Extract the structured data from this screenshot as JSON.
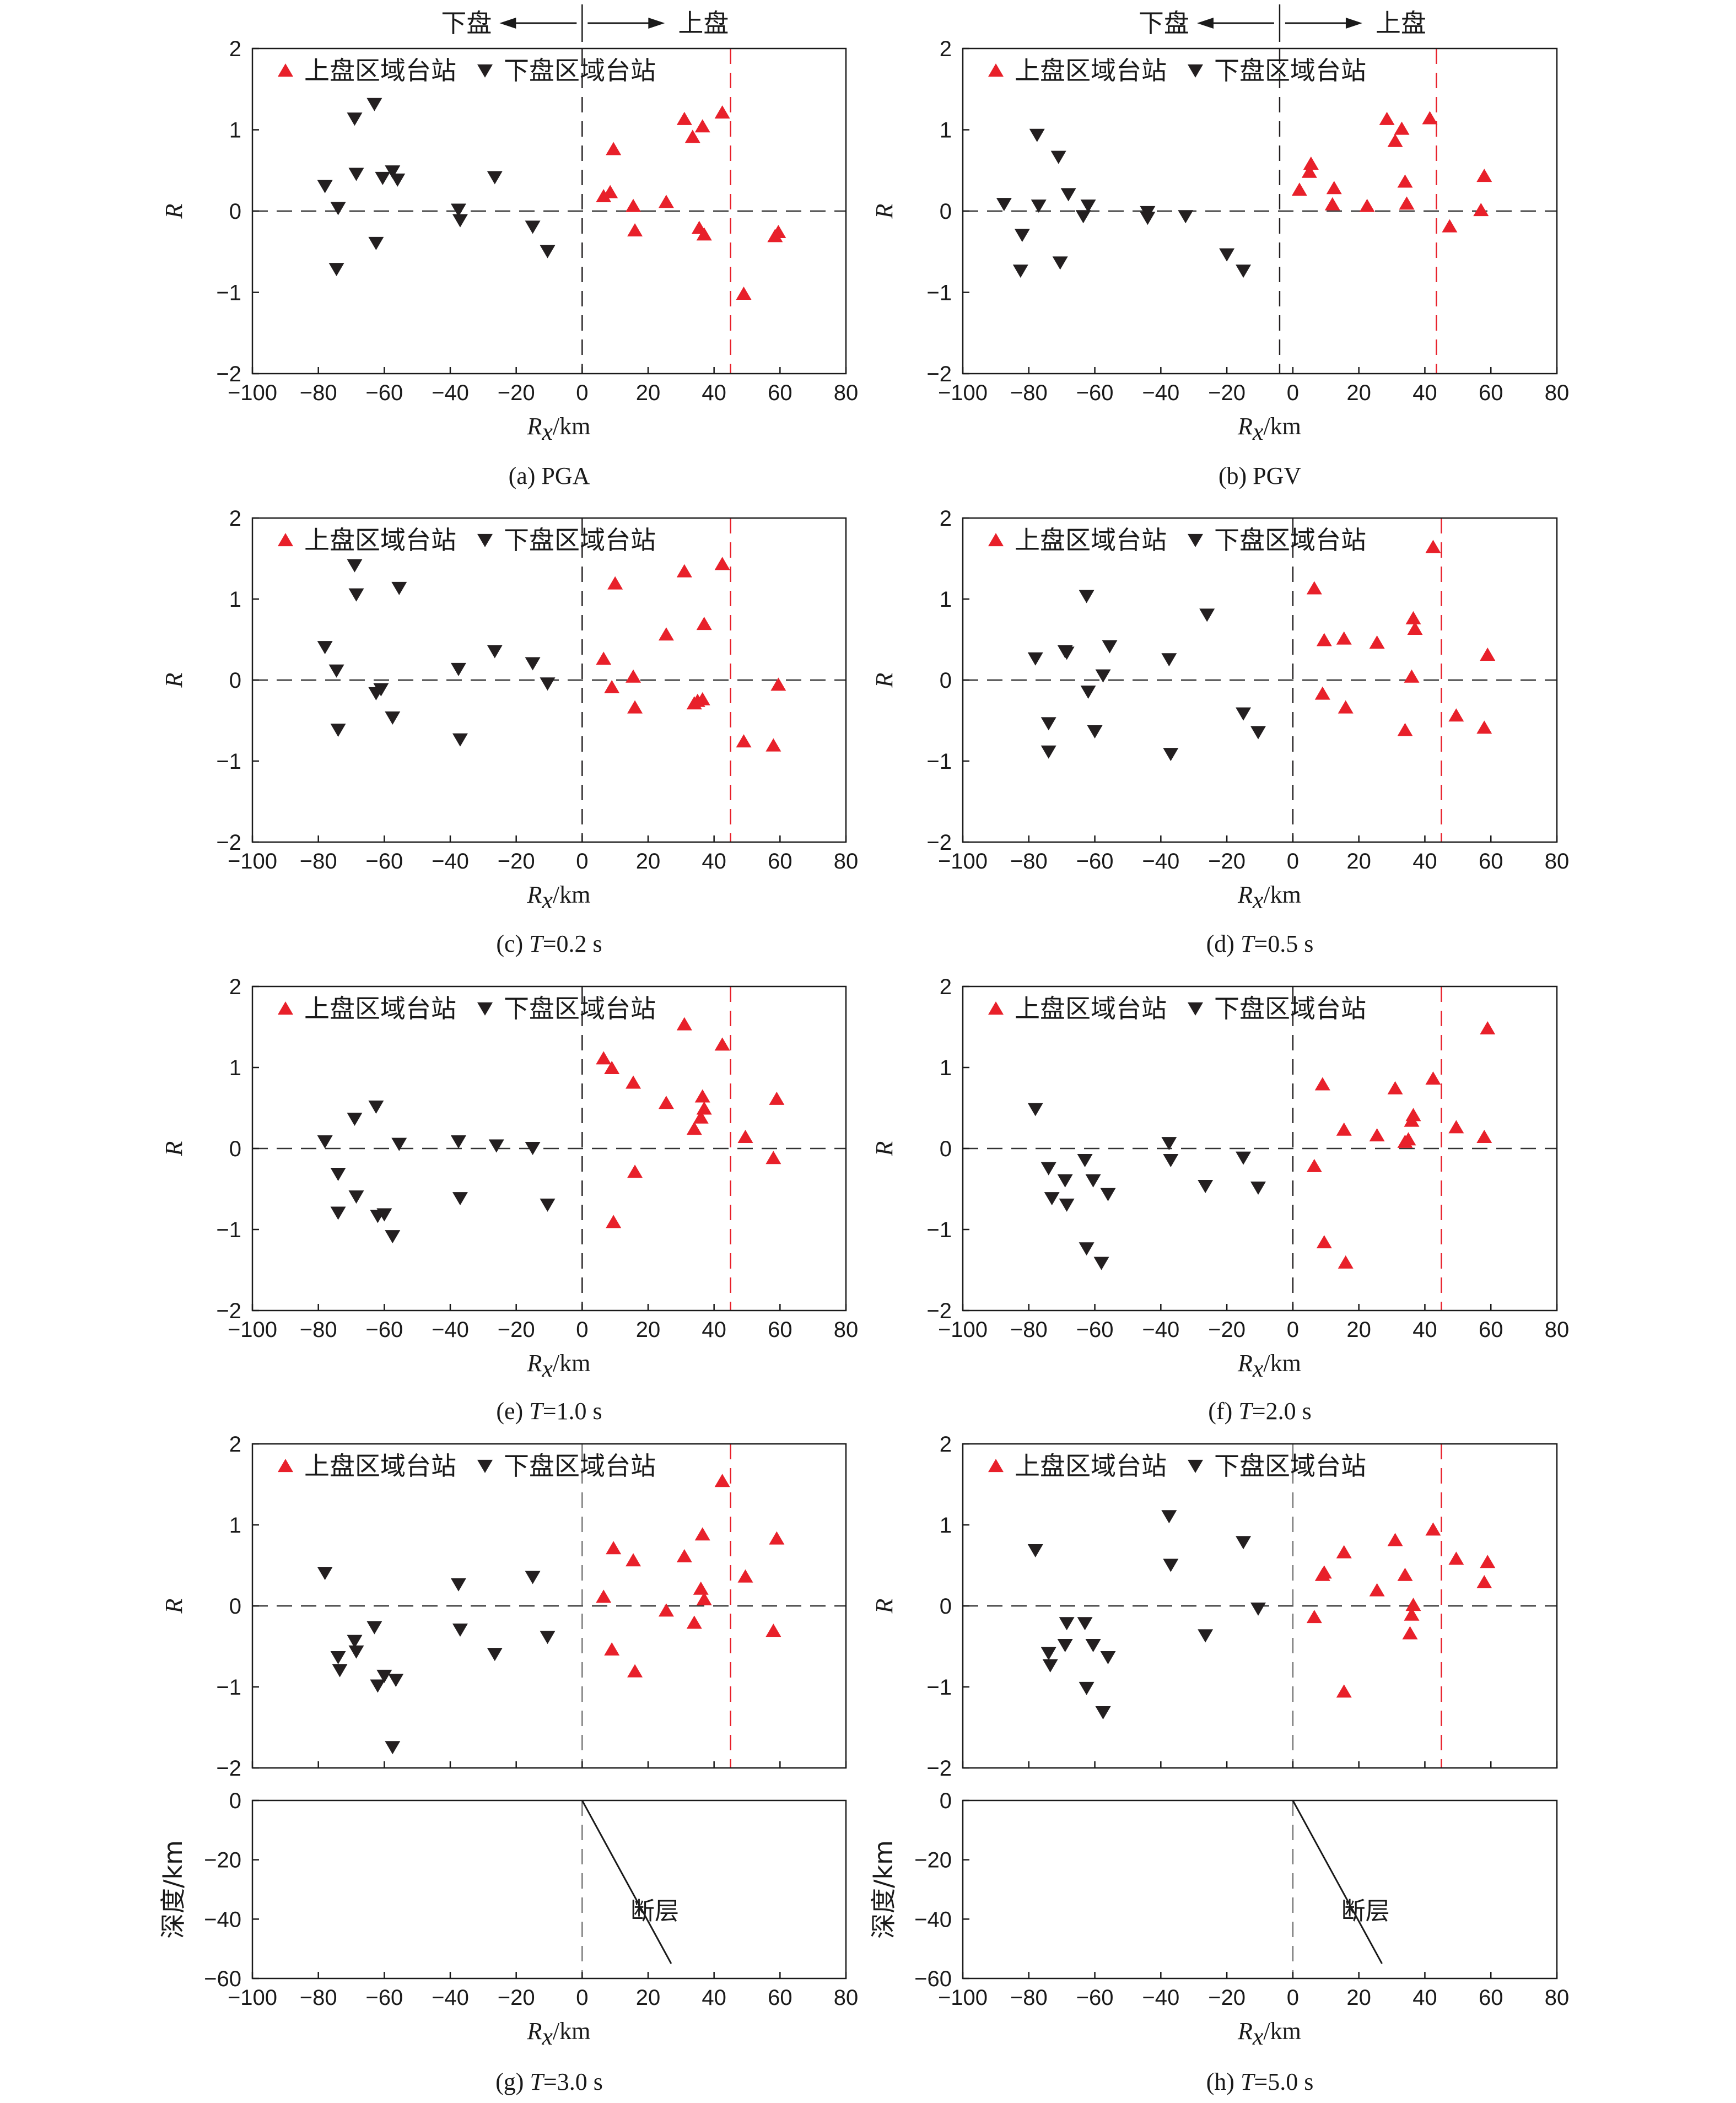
{
  "colors": {
    "hanging_wall": "#e8202a",
    "footwall": "#231f20",
    "axis": "#1a1a1a",
    "zero_line": "#333333"
  },
  "legend": {
    "hanging_wall": "上盘区域台站",
    "footwall": "下盘区域台站"
  },
  "direction_labels": {
    "left": "下盘",
    "right": "上盘"
  },
  "fault_label": "断层",
  "chart_data": [
    {
      "id": "a",
      "type": "scatter",
      "caption_prefix": "(a) ",
      "caption_var": "",
      "caption_value": "PGA",
      "xlabel": "R",
      "xlabel_sub": "x",
      "xlabel_unit": "/km",
      "ylabel": "R",
      "xlim": [
        -100,
        80
      ],
      "ylim": [
        -2,
        2
      ],
      "xticks": [
        -100,
        -80,
        -60,
        -40,
        -20,
        0,
        20,
        40,
        60,
        80
      ],
      "yticks": [
        -2,
        -1,
        0,
        1,
        2
      ],
      "vlines": [
        {
          "x": 0,
          "color": "footwall"
        },
        {
          "x": 45,
          "color": "hanging_wall"
        }
      ],
      "series": [
        {
          "name": "上盘区域台站",
          "marker": "triangle-up",
          "color": "hanging_wall",
          "x": [
            6.5,
            8.5,
            9.5,
            15.5,
            16,
            25.5,
            31,
            33.5,
            36.5,
            35.5,
            37,
            42.5,
            49,
            58.5,
            59.5
          ],
          "y": [
            0.17,
            0.22,
            0.75,
            0.05,
            -0.25,
            0.1,
            1.12,
            0.9,
            1.03,
            -0.22,
            -0.3,
            1.2,
            -1.03,
            -0.32,
            -0.27
          ]
        },
        {
          "name": "下盘区域台站",
          "marker": "triangle-down",
          "color": "footwall",
          "x": [
            -78,
            -74.5,
            -74,
            -69,
            -68.5,
            -63,
            -62.5,
            -60.5,
            -57.5,
            -56,
            -37.5,
            -37,
            -26.5,
            -15,
            -10.5
          ],
          "y": [
            0.32,
            -0.7,
            0.05,
            1.15,
            0.47,
            1.33,
            -0.38,
            0.42,
            0.5,
            0.4,
            0.03,
            -0.1,
            0.43,
            -0.18,
            -0.48
          ]
        }
      ]
    },
    {
      "id": "b",
      "type": "scatter",
      "caption_prefix": "(b) ",
      "caption_var": "",
      "caption_value": "PGV",
      "xlabel": "R",
      "xlabel_sub": "x",
      "xlabel_unit": "/km",
      "ylabel": "R",
      "xlim": [
        -100,
        80
      ],
      "ylim": [
        -2,
        2
      ],
      "xticks": [
        -100,
        -80,
        -60,
        -40,
        -20,
        0,
        20,
        40,
        60,
        80
      ],
      "yticks": [
        -2,
        -1,
        0,
        1,
        2
      ],
      "vlines": [
        {
          "x": -4,
          "color": "footwall"
        },
        {
          "x": 43.5,
          "color": "hanging_wall"
        }
      ],
      "series": [
        {
          "name": "上盘区域台站",
          "marker": "triangle-up",
          "color": "hanging_wall",
          "x": [
            2,
            5,
            5.5,
            12,
            12.5,
            22.5,
            28.5,
            31,
            33,
            34,
            34.5,
            41.5,
            47.5,
            57,
            58
          ],
          "y": [
            0.25,
            0.47,
            0.57,
            0.07,
            0.27,
            0.05,
            1.12,
            0.85,
            1.0,
            0.35,
            0.08,
            1.13,
            -0.2,
            0.0,
            0.42
          ]
        },
        {
          "name": "下盘区域台站",
          "marker": "triangle-down",
          "color": "footwall",
          "x": [
            -87.5,
            -82.5,
            -82,
            -77.5,
            -77,
            -71,
            -70.5,
            -68,
            -63.5,
            -62,
            -44,
            -44,
            -32.5,
            -20,
            -15
          ],
          "y": [
            0.1,
            -0.72,
            -0.28,
            0.95,
            0.08,
            0.68,
            -0.62,
            0.22,
            -0.05,
            0.08,
            0.0,
            -0.07,
            -0.05,
            -0.52,
            -0.72
          ]
        }
      ]
    },
    {
      "id": "c",
      "type": "scatter",
      "caption_prefix": "(c) ",
      "caption_var": "T",
      "caption_value": "=0.2 s",
      "xlabel": "R",
      "xlabel_sub": "x",
      "xlabel_unit": "/km",
      "ylabel": "R",
      "xlim": [
        -100,
        80
      ],
      "ylim": [
        -2,
        2
      ],
      "xticks": [
        -100,
        -80,
        -60,
        -40,
        -20,
        0,
        20,
        40,
        60,
        80
      ],
      "yticks": [
        -2,
        -1,
        0,
        1,
        2
      ],
      "vlines": [
        {
          "x": 0,
          "color": "footwall"
        },
        {
          "x": 45,
          "color": "hanging_wall"
        }
      ],
      "series": [
        {
          "name": "上盘区域台站",
          "marker": "triangle-up",
          "color": "hanging_wall",
          "x": [
            6.5,
            9,
            10,
            15.5,
            16,
            25.5,
            31,
            34,
            35,
            36.5,
            37,
            42.5,
            49,
            58,
            59.5
          ],
          "y": [
            0.25,
            -0.1,
            1.18,
            0.03,
            -0.35,
            0.55,
            1.33,
            -0.3,
            -0.27,
            -0.25,
            0.68,
            1.42,
            -0.77,
            -0.82,
            -0.07
          ]
        },
        {
          "name": "下盘区域台站",
          "marker": "triangle-down",
          "color": "footwall",
          "x": [
            -78,
            -74.5,
            -74,
            -69,
            -68.5,
            -62.5,
            -61,
            -57.5,
            -55.5,
            -37.5,
            -37,
            -26.5,
            -15,
            -10.5
          ],
          "y": [
            0.42,
            0.13,
            -0.6,
            1.43,
            1.07,
            -0.15,
            -0.1,
            -0.45,
            1.15,
            0.15,
            -0.72,
            0.37,
            0.22,
            -0.03
          ]
        }
      ]
    },
    {
      "id": "d",
      "type": "scatter",
      "caption_prefix": "(d) ",
      "caption_var": "T",
      "caption_value": "=0.5 s",
      "xlabel": "R",
      "xlabel_sub": "x",
      "xlabel_unit": "/km",
      "ylabel": "R",
      "xlim": [
        -100,
        80
      ],
      "ylim": [
        -2,
        2
      ],
      "xticks": [
        -100,
        -80,
        -60,
        -40,
        -20,
        0,
        20,
        40,
        60,
        80
      ],
      "yticks": [
        -2,
        -1,
        0,
        1,
        2
      ],
      "vlines": [
        {
          "x": 0,
          "color": "footwall"
        },
        {
          "x": 45,
          "color": "hanging_wall"
        }
      ],
      "series": [
        {
          "name": "上盘区域台站",
          "marker": "triangle-up",
          "color": "hanging_wall",
          "x": [
            6.5,
            9,
            9.5,
            15.5,
            16,
            25.5,
            34,
            36,
            36.5,
            37,
            42.5,
            49.5,
            58,
            59
          ],
          "y": [
            1.12,
            -0.18,
            0.48,
            0.5,
            -0.35,
            0.45,
            -0.63,
            0.03,
            0.75,
            0.62,
            1.63,
            -0.45,
            -0.6,
            0.3
          ]
        },
        {
          "name": "下盘区域台站",
          "marker": "triangle-down",
          "color": "footwall",
          "x": [
            -78,
            -74,
            -74,
            -69,
            -68.5,
            -62.5,
            -62,
            -60,
            -57.5,
            -55.5,
            -37.5,
            -37,
            -26,
            -15,
            -10.5
          ],
          "y": [
            0.28,
            -0.52,
            -0.87,
            0.37,
            0.35,
            1.05,
            -0.13,
            -0.62,
            0.07,
            0.43,
            0.27,
            -0.9,
            0.82,
            -0.4,
            -0.63
          ]
        }
      ]
    },
    {
      "id": "e",
      "type": "scatter",
      "caption_prefix": "(e) ",
      "caption_var": "T",
      "caption_value": "=1.0 s",
      "xlabel": "R",
      "xlabel_sub": "x",
      "xlabel_unit": "/km",
      "ylabel": "R",
      "xlim": [
        -100,
        80
      ],
      "ylim": [
        -2,
        2
      ],
      "xticks": [
        -100,
        -80,
        -60,
        -40,
        -20,
        0,
        20,
        40,
        60,
        80
      ],
      "yticks": [
        -2,
        -1,
        0,
        1,
        2
      ],
      "vlines": [
        {
          "x": 0,
          "color": "footwall"
        },
        {
          "x": 45,
          "color": "hanging_wall"
        }
      ],
      "series": [
        {
          "name": "上盘区域台站",
          "marker": "triangle-up",
          "color": "hanging_wall",
          "x": [
            6.5,
            9,
            9.5,
            15.5,
            16,
            25.5,
            31,
            34,
            36,
            36.5,
            37,
            42.5,
            49.5,
            58,
            59
          ],
          "y": [
            1.1,
            0.98,
            -0.92,
            0.8,
            -0.3,
            0.55,
            1.52,
            0.23,
            0.37,
            0.63,
            0.48,
            1.27,
            0.13,
            -0.13,
            0.6
          ]
        },
        {
          "name": "下盘区域台站",
          "marker": "triangle-down",
          "color": "footwall",
          "x": [
            -78,
            -74,
            -74,
            -69,
            -68.5,
            -62.5,
            -62,
            -60,
            -57.5,
            -55.5,
            -37.5,
            -37,
            -26,
            -15,
            -10.5
          ],
          "y": [
            0.1,
            -0.3,
            -0.78,
            0.38,
            -0.58,
            0.53,
            -0.82,
            -0.8,
            -1.07,
            0.07,
            0.1,
            -0.6,
            0.05,
            0.02,
            -0.68
          ]
        }
      ]
    },
    {
      "id": "f",
      "type": "scatter",
      "caption_prefix": "(f) ",
      "caption_var": "T",
      "caption_value": "=2.0 s",
      "xlabel": "R",
      "xlabel_sub": "x",
      "xlabel_unit": "/km",
      "ylabel": "R",
      "xlim": [
        -100,
        80
      ],
      "ylim": [
        -2,
        2
      ],
      "xticks": [
        -100,
        -80,
        -60,
        -40,
        -20,
        0,
        20,
        40,
        60,
        80
      ],
      "yticks": [
        -2,
        -1,
        0,
        1,
        2
      ],
      "vlines": [
        {
          "x": 0,
          "color": "footwall"
        },
        {
          "x": 45,
          "color": "hanging_wall"
        }
      ],
      "series": [
        {
          "name": "上盘区域台站",
          "marker": "triangle-up",
          "color": "hanging_wall",
          "x": [
            6.5,
            9,
            9.5,
            15.5,
            16,
            25.5,
            31,
            34,
            35,
            36,
            36.5,
            42.5,
            49.5,
            58,
            59
          ],
          "y": [
            -0.23,
            0.78,
            -1.17,
            0.22,
            -1.42,
            0.15,
            0.73,
            0.07,
            0.1,
            0.33,
            0.4,
            0.85,
            0.25,
            0.13,
            1.47
          ]
        },
        {
          "name": "下盘区域台站",
          "marker": "triangle-down",
          "color": "footwall",
          "x": [
            -78,
            -74,
            -73,
            -69,
            -68.5,
            -63,
            -62.5,
            -60.5,
            -58,
            -56,
            -37.5,
            -37,
            -26.5,
            -15,
            -10.5
          ],
          "y": [
            0.5,
            -0.23,
            -0.6,
            -0.38,
            -0.68,
            -0.13,
            -1.22,
            -0.38,
            -1.4,
            -0.55,
            0.08,
            -0.13,
            -0.45,
            -0.1,
            -0.47
          ]
        }
      ]
    },
    {
      "id": "g",
      "type": "scatter",
      "caption_prefix": "(g) ",
      "caption_var": "T",
      "caption_value": "=3.0 s",
      "xlabel": "R",
      "xlabel_sub": "x",
      "xlabel_unit": "/km",
      "ylabel": "R",
      "xlim": [
        -100,
        80
      ],
      "ylim": [
        -2,
        2
      ],
      "xticks": [
        -100,
        -80,
        -60,
        -40,
        -20,
        0,
        20,
        40,
        60,
        80
      ],
      "yticks": [
        -2,
        -1,
        0,
        1,
        2
      ],
      "vlines": [
        {
          "x": 0,
          "color": "zero"
        },
        {
          "x": 45,
          "color": "hanging_wall"
        }
      ],
      "series": [
        {
          "name": "上盘区域台站",
          "marker": "triangle-up",
          "color": "hanging_wall",
          "x": [
            6.5,
            9,
            9.5,
            15.5,
            16,
            25.5,
            31,
            34,
            36,
            36.5,
            37,
            42.5,
            49.5,
            58,
            59
          ],
          "y": [
            0.1,
            -0.55,
            0.7,
            0.55,
            -0.82,
            -0.07,
            0.6,
            -0.22,
            0.2,
            0.87,
            0.07,
            1.53,
            0.35,
            -0.32,
            0.82
          ]
        },
        {
          "name": "下盘区域台站",
          "marker": "triangle-down",
          "color": "footwall",
          "x": [
            -78,
            -74,
            -73.5,
            -69,
            -68.5,
            -63,
            -62,
            -60,
            -56.5,
            -57.5,
            -37.5,
            -37,
            -26.5,
            -15,
            -10.5
          ],
          "y": [
            0.42,
            -0.62,
            -0.78,
            -0.42,
            -0.55,
            -0.25,
            -0.97,
            -0.85,
            -0.9,
            -1.73,
            0.28,
            -0.28,
            -0.58,
            0.37,
            -0.37
          ]
        }
      ]
    },
    {
      "id": "h",
      "type": "scatter",
      "caption_prefix": "(h) ",
      "caption_var": "T",
      "caption_value": "=5.0 s",
      "xlabel": "R",
      "xlabel_sub": "x",
      "xlabel_unit": "/km",
      "ylabel": "R",
      "xlim": [
        -100,
        80
      ],
      "ylim": [
        -2,
        2
      ],
      "xticks": [
        -100,
        -80,
        -60,
        -40,
        -20,
        0,
        20,
        40,
        60,
        80
      ],
      "yticks": [
        -2,
        -1,
        0,
        1,
        2
      ],
      "vlines": [
        {
          "x": 0,
          "color": "zero"
        },
        {
          "x": 45,
          "color": "hanging_wall"
        }
      ],
      "series": [
        {
          "name": "上盘区域台站",
          "marker": "triangle-up",
          "color": "hanging_wall",
          "x": [
            6.5,
            9,
            9.5,
            15.5,
            15.5,
            25.5,
            31,
            34,
            35.5,
            36,
            36.5,
            42.5,
            49.5,
            58,
            59
          ],
          "y": [
            -0.15,
            0.37,
            0.4,
            0.65,
            -1.07,
            0.18,
            0.8,
            0.37,
            -0.35,
            -0.12,
            0.0,
            0.93,
            0.57,
            0.28,
            0.53
          ]
        },
        {
          "name": "下盘区域台站",
          "marker": "triangle-down",
          "color": "footwall",
          "x": [
            -78,
            -74,
            -73.5,
            -69,
            -68.5,
            -63,
            -62.5,
            -60.5,
            -57.5,
            -56,
            -37.5,
            -37,
            -26.5,
            -15,
            -10.5
          ],
          "y": [
            0.7,
            -0.57,
            -0.72,
            -0.47,
            -0.2,
            -0.2,
            -1.0,
            -0.47,
            -1.3,
            -0.62,
            1.12,
            0.52,
            -0.35,
            0.8,
            -0.02
          ]
        }
      ]
    }
  ],
  "depth_panels": [
    {
      "id": "g",
      "ylabel": "深度/km",
      "xlabel": "R",
      "xlabel_sub": "x",
      "xlabel_unit": "/km",
      "xlim": [
        -100,
        80
      ],
      "ylim": [
        -60,
        0
      ],
      "xticks": [
        -100,
        -80,
        -60,
        -40,
        -20,
        0,
        20,
        40,
        60,
        80
      ],
      "yticks": [
        -60,
        -40,
        -20,
        0
      ],
      "fault": {
        "x": [
          0,
          27
        ],
        "y": [
          0,
          -55
        ]
      }
    },
    {
      "id": "h",
      "ylabel": "深度/km",
      "xlabel": "R",
      "xlabel_sub": "x",
      "xlabel_unit": "/km",
      "xlim": [
        -100,
        80
      ],
      "ylim": [
        -60,
        0
      ],
      "xticks": [
        -100,
        -80,
        -60,
        -40,
        -20,
        0,
        20,
        40,
        60,
        80
      ],
      "yticks": [
        -60,
        -40,
        -20,
        0
      ],
      "fault": {
        "x": [
          0,
          27
        ],
        "y": [
          0,
          -55
        ]
      }
    }
  ]
}
